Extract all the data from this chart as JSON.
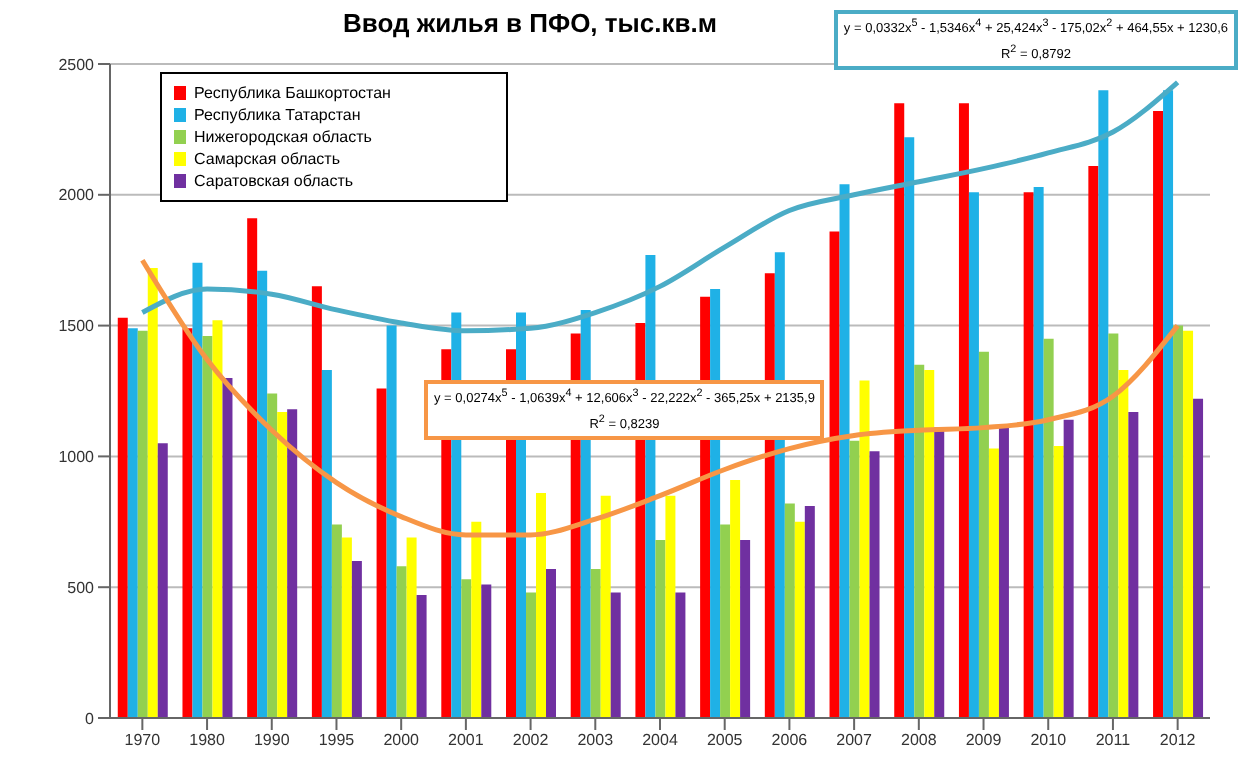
{
  "chart_data": {
    "type": "bar",
    "title": "Ввод жилья в ПФО, тыс.кв.м",
    "categories": [
      "1970",
      "1980",
      "1990",
      "1995",
      "2000",
      "2001",
      "2002",
      "2003",
      "2004",
      "2005",
      "2006",
      "2007",
      "2008",
      "2009",
      "2010",
      "2011",
      "2012"
    ],
    "series": [
      {
        "name": "Республика Башкортостан",
        "color": "#ff0000",
        "values": [
          1530,
          1490,
          1910,
          1650,
          1260,
          1410,
          1410,
          1470,
          1510,
          1610,
          1700,
          1860,
          2350,
          2350,
          2010,
          2110,
          2320
        ]
      },
      {
        "name": "Республика Татарстан",
        "color": "#1fb1e6",
        "values": [
          1490,
          1740,
          1710,
          1330,
          1500,
          1550,
          1550,
          1560,
          1770,
          1640,
          1780,
          2040,
          2220,
          2010,
          2030,
          2400,
          2400
        ]
      },
      {
        "name": "Нижегородская область",
        "color": "#92d050",
        "values": [
          1480,
          1460,
          1240,
          740,
          580,
          530,
          480,
          570,
          680,
          740,
          820,
          1060,
          1350,
          1400,
          1450,
          1470,
          1500
        ]
      },
      {
        "name": "Самарская область",
        "color": "#ffff00",
        "values": [
          1720,
          1520,
          1170,
          690,
          690,
          750,
          860,
          850,
          850,
          910,
          750,
          1290,
          1330,
          1030,
          1040,
          1330,
          1480
        ]
      },
      {
        "name": "Саратовская область",
        "color": "#7030a0",
        "values": [
          1050,
          1300,
          1180,
          600,
          470,
          510,
          570,
          480,
          480,
          680,
          810,
          1020,
          1110,
          1120,
          1140,
          1170,
          1220
        ]
      },
      {
        "type": "line",
        "color": "#4bacc6",
        "values": [
          1550,
          1640,
          1620,
          1560,
          1510,
          1480,
          1490,
          1550,
          1650,
          1800,
          1940,
          2000,
          2050,
          2100,
          2160,
          2240,
          2430
        ]
      },
      {
        "type": "line",
        "color": "#f79646",
        "values": [
          1750,
          1370,
          1100,
          900,
          770,
          700,
          700,
          760,
          850,
          950,
          1030,
          1080,
          1100,
          1110,
          1140,
          1230,
          1500
        ]
      }
    ],
    "ylim": [
      0,
      2500
    ],
    "yticks": [
      0,
      500,
      1000,
      1500,
      2000,
      2500
    ],
    "grid": "y",
    "legend": "top left",
    "annotations": [
      "y = 0,0332x$^{5}$ - 1,5346x$^{4}$ + 25,424x$^{3}$ - 175,02x$^{2}$ + 464,55x + 1230,6\nR$^{2}$ = 0,8792",
      "y = 0,0274x$^{5}$ - 1,0639x$^{4}$ + 12,606x$^{3}$ - 22,222x$^{2}$ - 365,25x + 2135,9\nR$^{2}$ = 0,8239"
    ]
  }
}
